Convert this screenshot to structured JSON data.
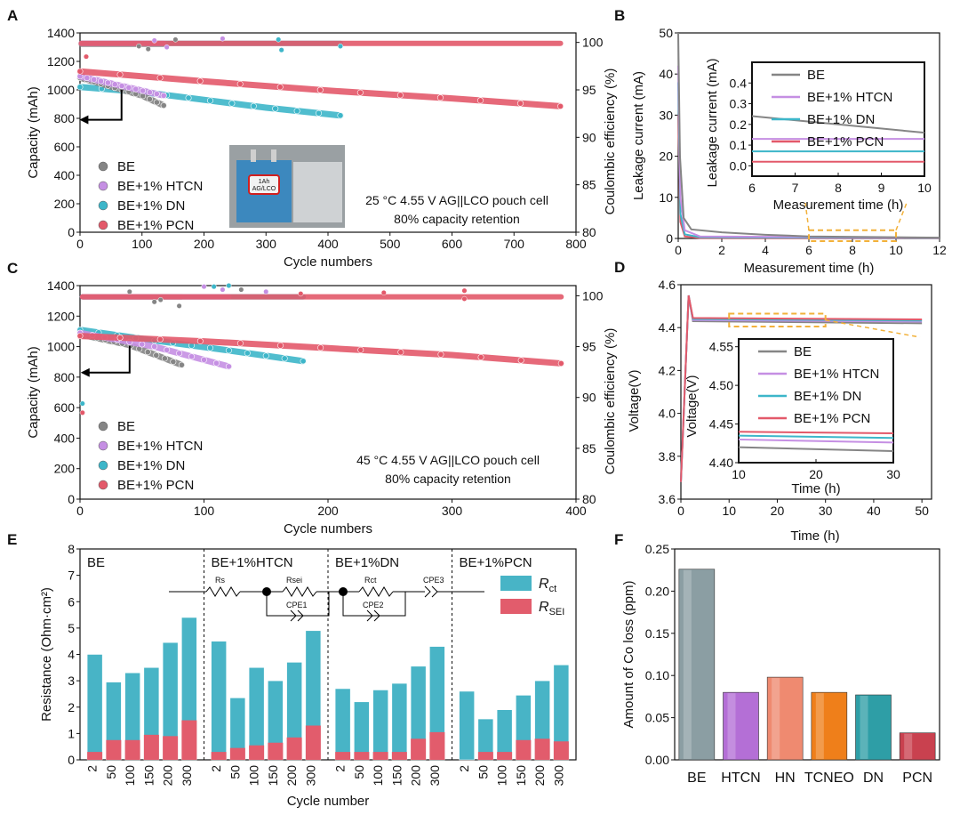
{
  "colors": {
    "BE": "#858585",
    "HTCN": "#c58fe3",
    "DN": "#3db6c9",
    "PCN": "#e3596a",
    "Rct": "#48b4c6",
    "RSEI": "#e25c6c",
    "arrow": "#000000",
    "dash": "#f2b13a"
  },
  "panel_labels": {
    "A": "A",
    "B": "B",
    "C": "C",
    "D": "D",
    "E": "E",
    "F": "F"
  },
  "legend_names": [
    "BE",
    "BE+1% HTCN",
    "BE+1% DN",
    "BE+1% PCN"
  ],
  "chart_data": [
    {
      "panel": "A",
      "type": "scatter",
      "xlabel": "Cycle numbers",
      "ylabel": "Capacity (mAh)",
      "y2label": "Coulombic efficiency (%)",
      "xlim": [
        0,
        800
      ],
      "ylim": [
        0,
        1400
      ],
      "y2lim": [
        80,
        101
      ],
      "xticks": [
        "0",
        "100",
        "200",
        "300",
        "400",
        "500",
        "600",
        "700",
        "800"
      ],
      "yticks": [
        "0",
        "200",
        "400",
        "600",
        "800",
        "1000",
        "1200",
        "1400"
      ],
      "y2ticks": [
        "80",
        "85",
        "90",
        "95",
        "100"
      ],
      "annotation": [
        "25 °C 4.55 V AG||LCO pouch cell",
        "80% capacity retention"
      ],
      "inset_label": [
        "1Ah",
        "AG/LCO"
      ],
      "series": [
        {
          "name": "BE",
          "capacity": [
            [
              0,
              1085
            ],
            [
              60,
              1010
            ],
            [
              100,
              960
            ],
            [
              135,
              890
            ]
          ],
          "ce": [
            [
              2,
              99.8
            ],
            [
              135,
              99.8
            ]
          ]
        },
        {
          "name": "BE+1% HTCN",
          "capacity": [
            [
              0,
              1095
            ],
            [
              60,
              1035
            ],
            [
              100,
              995
            ],
            [
              135,
              960
            ]
          ],
          "ce": [
            [
              2,
              99.9
            ],
            [
              135,
              99.9
            ]
          ]
        },
        {
          "name": "BE+1% DN",
          "capacity": [
            [
              0,
              1020
            ],
            [
              100,
              985
            ],
            [
              200,
              930
            ],
            [
              300,
              875
            ],
            [
              420,
              820
            ]
          ],
          "ce": [
            [
              2,
              99.9
            ],
            [
              420,
              99.9
            ]
          ]
        },
        {
          "name": "BE+1% PCN",
          "capacity": [
            [
              0,
              1130
            ],
            [
              200,
              1060
            ],
            [
              400,
              995
            ],
            [
              600,
              940
            ],
            [
              775,
              885
            ]
          ],
          "ce": [
            [
              2,
              99.9
            ],
            [
              775,
              99.9
            ]
          ]
        }
      ]
    },
    {
      "panel": "B",
      "type": "line",
      "xlabel": "Measurement time (h)",
      "ylabel": "Leakage current (mA)",
      "xlim": [
        0,
        12
      ],
      "ylim": [
        0,
        50
      ],
      "xticks": [
        "0",
        "2",
        "4",
        "6",
        "8",
        "10",
        "12"
      ],
      "yticks": [
        "0",
        "10",
        "20",
        "30",
        "40",
        "50"
      ],
      "inset": {
        "xlabel": "Measurement time (h)",
        "ylabel": "Leakage current (mA)",
        "xlim": [
          6,
          10
        ],
        "ylim": [
          -0.05,
          0.5
        ],
        "xticks": [
          "6",
          "7",
          "8",
          "9",
          "10"
        ],
        "yticks": [
          "0.0",
          "0.1",
          "0.2",
          "0.3",
          "0.4"
        ],
        "values": {
          "BE": [
            0.24,
            0.16
          ],
          "BE+1% HTCN": [
            0.13,
            0.13
          ],
          "BE+1% DN": [
            0.07,
            0.07
          ],
          "BE+1% PCN": [
            0.02,
            0.02
          ]
        }
      },
      "series": [
        {
          "name": "BE",
          "points": [
            [
              0,
              50
            ],
            [
              0.08,
              20
            ],
            [
              0.25,
              5
            ],
            [
              0.6,
              2.2
            ],
            [
              2,
              1.5
            ],
            [
              4,
              0.9
            ],
            [
              6,
              0.5
            ],
            [
              12,
              0.2
            ]
          ]
        },
        {
          "name": "BE+1% HTCN",
          "points": [
            [
              0,
              42
            ],
            [
              0.1,
              10
            ],
            [
              0.3,
              2
            ],
            [
              1,
              0.5
            ],
            [
              12,
              0.15
            ]
          ]
        },
        {
          "name": "BE+1% DN",
          "points": [
            [
              0,
              38
            ],
            [
              0.1,
              6
            ],
            [
              0.3,
              1
            ],
            [
              1,
              0.3
            ],
            [
              12,
              0.1
            ]
          ]
        },
        {
          "name": "BE+1% PCN",
          "points": [
            [
              0,
              30
            ],
            [
              0.1,
              4
            ],
            [
              0.3,
              0.5
            ],
            [
              1,
              0.1
            ],
            [
              12,
              0.05
            ]
          ]
        }
      ]
    },
    {
      "panel": "C",
      "type": "scatter",
      "xlabel": "Cycle numbers",
      "ylabel": "Capacity (mAh)",
      "y2label": "Coulombic efficiency (%)",
      "xlim": [
        0,
        400
      ],
      "ylim": [
        0,
        1400
      ],
      "y2lim": [
        80,
        101
      ],
      "xticks": [
        "0",
        "100",
        "200",
        "300",
        "400"
      ],
      "yticks": [
        "0",
        "200",
        "400",
        "600",
        "800",
        "1000",
        "1200",
        "1400"
      ],
      "y2ticks": [
        "80",
        "85",
        "90",
        "95",
        "100"
      ],
      "annotation": [
        "45 °C 4.55 V AG||LCO pouch cell",
        "80% capacity retention"
      ],
      "series": [
        {
          "name": "BE",
          "capacity": [
            [
              0,
              1080
            ],
            [
              40,
              1010
            ],
            [
              82,
              880
            ]
          ],
          "ce": [
            [
              2,
              99.9
            ],
            [
              82,
              99.9
            ]
          ]
        },
        {
          "name": "BE+1% HTCN",
          "capacity": [
            [
              0,
              1090
            ],
            [
              60,
              1000
            ],
            [
              120,
              870
            ]
          ],
          "ce": [
            [
              2,
              99.9
            ],
            [
              120,
              99.9
            ]
          ]
        },
        {
          "name": "BE+1% DN",
          "capacity": [
            [
              0,
              1110
            ],
            [
              60,
              1040
            ],
            [
              120,
              975
            ],
            [
              180,
              905
            ]
          ],
          "ce": [
            [
              2,
              99.9
            ],
            [
              180,
              99.9
            ]
          ]
        },
        {
          "name": "BE+1% PCN",
          "capacity": [
            [
              0,
              1070
            ],
            [
              100,
              1035
            ],
            [
              200,
              990
            ],
            [
              300,
              945
            ],
            [
              388,
              890
            ]
          ],
          "ce": [
            [
              2,
              99.9
            ],
            [
              388,
              99.9
            ]
          ]
        }
      ]
    },
    {
      "panel": "D",
      "type": "line",
      "xlabel": "Time (h)",
      "ylabel": "Voltage(V)",
      "xlim": [
        0,
        52
      ],
      "ylim": [
        3.6,
        4.6
      ],
      "xticks": [
        "0",
        "10",
        "20",
        "30",
        "40",
        "50"
      ],
      "yticks": [
        "3.6",
        "3.8",
        "4.0",
        "4.2",
        "4.4",
        "4.6"
      ],
      "inset": {
        "xlabel": "Time (h)",
        "ylabel": "Voltage(V)",
        "xlim": [
          10,
          30
        ],
        "ylim": [
          4.4,
          4.56
        ],
        "xticks": [
          "10",
          "20",
          "30"
        ],
        "yticks": [
          "4.40",
          "4.45",
          "4.50",
          "4.55"
        ],
        "values": {
          "BE": [
            4.42,
            4.415
          ],
          "BE+1% HTCN": [
            4.43,
            4.426
          ],
          "BE+1% DN": [
            4.435,
            4.432
          ],
          "BE+1% PCN": [
            4.44,
            4.438
          ]
        }
      },
      "series": [
        {
          "name": "BE",
          "points": [
            [
              0,
              3.68
            ],
            [
              1.6,
              4.55
            ],
            [
              2.5,
              4.43
            ],
            [
              50,
              4.42
            ]
          ]
        },
        {
          "name": "BE+1% HTCN",
          "points": [
            [
              0,
              3.68
            ],
            [
              1.6,
              4.55
            ],
            [
              2.5,
              4.435
            ],
            [
              50,
              4.428
            ]
          ]
        },
        {
          "name": "BE+1% DN",
          "points": [
            [
              0,
              3.68
            ],
            [
              1.6,
              4.55
            ],
            [
              2.5,
              4.44
            ],
            [
              50,
              4.433
            ]
          ]
        },
        {
          "name": "BE+1% PCN",
          "points": [
            [
              0,
              3.68
            ],
            [
              1.6,
              4.55
            ],
            [
              2.5,
              4.445
            ],
            [
              50,
              4.438
            ]
          ]
        }
      ]
    },
    {
      "panel": "E",
      "type": "bar",
      "xlabel": "Cycle number",
      "ylabel": "Resistance (Ohm·cm²)",
      "ylim": [
        0,
        8
      ],
      "yticks": [
        "0",
        "1",
        "2",
        "3",
        "4",
        "5",
        "6",
        "7",
        "8"
      ],
      "categories": [
        "2",
        "50",
        "100",
        "150",
        "200",
        "300"
      ],
      "legend": [
        "R",
        "R"
      ],
      "legend_sub": [
        "ct",
        "SEI"
      ],
      "circuit_labels": [
        "Rs",
        "Rsei",
        "Rct",
        "CPE3",
        "CPE1",
        "CPE2"
      ],
      "groups": [
        {
          "name": "BE",
          "total": [
            4.0,
            2.95,
            3.3,
            3.5,
            4.45,
            5.4
          ],
          "sei": [
            0.3,
            0.75,
            0.75,
            0.95,
            0.9,
            1.5
          ]
        },
        {
          "name": "BE+1%HTCN",
          "total": [
            4.5,
            2.35,
            3.5,
            3.0,
            3.7,
            4.9
          ],
          "sei": [
            0.3,
            0.45,
            0.55,
            0.65,
            0.85,
            1.3
          ]
        },
        {
          "name": "BE+1%DN",
          "total": [
            2.7,
            2.2,
            2.65,
            2.9,
            3.55,
            4.3
          ],
          "sei": [
            0.3,
            0.3,
            0.3,
            0.3,
            0.8,
            1.05
          ]
        },
        {
          "name": "BE+1%PCN",
          "total": [
            2.6,
            1.55,
            1.9,
            2.45,
            3.0,
            3.6
          ],
          "sei": [
            0.0,
            0.3,
            0.3,
            0.75,
            0.8,
            0.7
          ]
        }
      ]
    },
    {
      "panel": "F",
      "type": "bar",
      "xlabel": "",
      "ylabel": "Amount of Co loss (ppm)",
      "ylim": [
        0,
        0.25
      ],
      "yticks": [
        "0.00",
        "0.05",
        "0.10",
        "0.15",
        "0.20",
        "0.25"
      ],
      "categories": [
        "BE",
        "HTCN",
        "HN",
        "TCNEO",
        "DN",
        "PCN"
      ],
      "values": [
        0.226,
        0.08,
        0.098,
        0.08,
        0.077,
        0.032
      ],
      "bar_colors": [
        "#8b9ea3",
        "#b46fd6",
        "#ef8a70",
        "#ef7f1a",
        "#2e9ea6",
        "#c9414f"
      ]
    }
  ]
}
